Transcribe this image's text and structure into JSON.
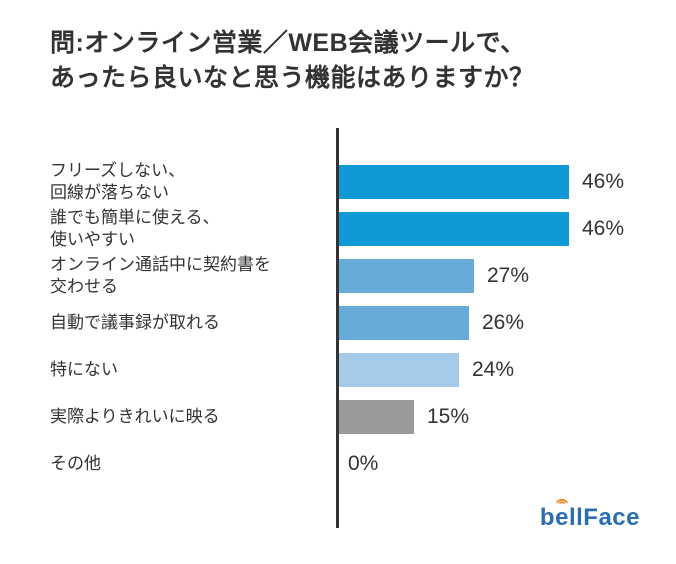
{
  "header": {
    "title": "問:オンライン営業／WEB会議ツールで、\nあったら良いなと思う機能はありますか？"
  },
  "chart_data": {
    "type": "bar",
    "orientation": "horizontal",
    "unit": "%",
    "categories": [
      "フリーズしない、\n回線が落ちない",
      "誰でも簡単に使える、\n使いやすい",
      "オンライン通話中に契約書を\n交わせる",
      "自動で議事録が取れる",
      "特にない",
      "実際よりきれいに映る",
      "その他"
    ],
    "values": [
      46,
      46,
      27,
      26,
      24,
      15,
      0
    ],
    "value_labels": [
      "46%",
      "46%",
      "27%",
      "26%",
      "24%",
      "15%",
      "0%"
    ],
    "bar_colors": [
      "#0f99d6",
      "#0f99d6",
      "#67abdb",
      "#67abdb",
      "#a5cbea",
      "#9a9a9a",
      "none"
    ],
    "xlim": [
      0,
      50
    ],
    "xlabel": "",
    "ylabel": "",
    "legend": "none",
    "grid": "off",
    "axis_color": "#333333",
    "text_color": "#333333"
  },
  "logo": {
    "text_before_arc": "b",
    "arc_letter": "e",
    "text_after_arc": "llFace",
    "full_text": "bellFace",
    "text_color": "#2c6fb0",
    "arc_color": "#f0862c"
  }
}
